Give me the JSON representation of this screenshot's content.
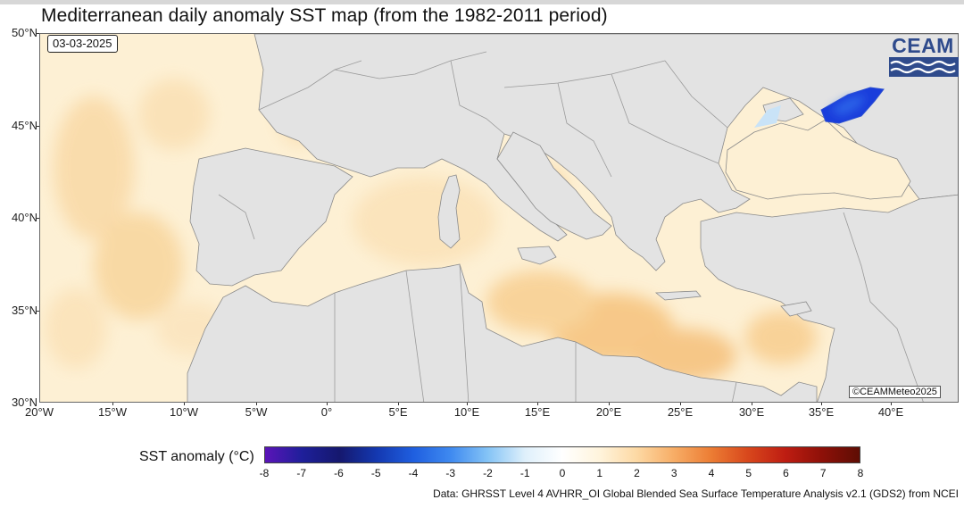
{
  "title": "Mediterranean daily anomaly SST map (from the 1982-2011 period)",
  "date_label": "03-03-2025",
  "logo": {
    "text": "CEAM",
    "color": "#2f4b8c"
  },
  "credit": "©CEAMMeteo2025",
  "lat_ticks": [
    "50°N",
    "45°N",
    "40°N",
    "35°N",
    "30°N"
  ],
  "lon_ticks": [
    "20°W",
    "15°W",
    "10°W",
    "5°W",
    "0°",
    "5°E",
    "10°E",
    "15°E",
    "20°E",
    "25°E",
    "30°E",
    "35°E",
    "40°E"
  ],
  "colorbar": {
    "label": "SST anomaly (°C)",
    "ticks": [
      "-8",
      "-7",
      "-6",
      "-5",
      "-4",
      "-3",
      "-2",
      "-1",
      "0",
      "1",
      "2",
      "3",
      "4",
      "5",
      "6",
      "7",
      "8"
    ],
    "colors": [
      "#5b14b8",
      "#1e1f9a",
      "#15186e",
      "#1438b0",
      "#1f5fe0",
      "#3f8af0",
      "#85c4f6",
      "#dff0fb",
      "#ffffff",
      "#fff4dc",
      "#fdd9a4",
      "#f7ad66",
      "#ec7d34",
      "#d8471c",
      "#be1d12",
      "#8d1008",
      "#5e0d04"
    ]
  },
  "source": "Data: GHRSST Level 4 AVHRR_OI Global Blended Sea Surface Temperature Analysis v2.1 (GDS2) from NCEI",
  "map_colors": {
    "land": "#e3e3e3",
    "border": "#8a8a8a",
    "sea_base": "#fdf3dc",
    "anomaly_warm": "#f8c98a",
    "anomaly_cold": "#1a3ddb"
  }
}
